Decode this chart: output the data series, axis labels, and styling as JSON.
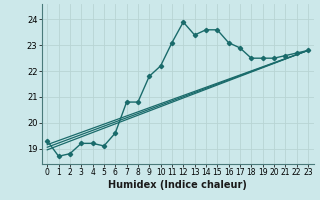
{
  "xlabel": "Humidex (Indice chaleur)",
  "xlim": [
    -0.5,
    23.5
  ],
  "ylim": [
    18.4,
    24.6
  ],
  "yticks": [
    19,
    20,
    21,
    22,
    23,
    24
  ],
  "xticks": [
    0,
    1,
    2,
    3,
    4,
    5,
    6,
    7,
    8,
    9,
    10,
    11,
    12,
    13,
    14,
    15,
    16,
    17,
    18,
    19,
    20,
    21,
    22,
    23
  ],
  "bg_outer": "#cce8ea",
  "bg_inner": "#cce8ea",
  "grid_color": "#b8d4d4",
  "line_color": "#1a6b6b",
  "main_line": {
    "x": [
      0,
      1,
      2,
      3,
      4,
      5,
      6,
      7,
      8,
      9,
      10,
      11,
      12,
      13,
      14,
      15,
      16,
      17,
      18,
      19,
      20,
      21,
      22,
      23
    ],
    "y": [
      19.3,
      18.7,
      18.8,
      19.2,
      19.2,
      19.1,
      19.6,
      20.8,
      20.8,
      21.8,
      22.2,
      23.1,
      23.9,
      23.4,
      23.6,
      23.6,
      23.1,
      22.9,
      22.5,
      22.5,
      22.5,
      22.6,
      22.7,
      22.8
    ]
  },
  "trend_lines": [
    {
      "x0": 0,
      "y0": 19.15,
      "x1": 23,
      "y1": 22.8
    },
    {
      "x0": 0,
      "y0": 19.05,
      "x1": 23,
      "y1": 22.8
    },
    {
      "x0": 0,
      "y0": 18.95,
      "x1": 23,
      "y1": 22.8
    }
  ]
}
